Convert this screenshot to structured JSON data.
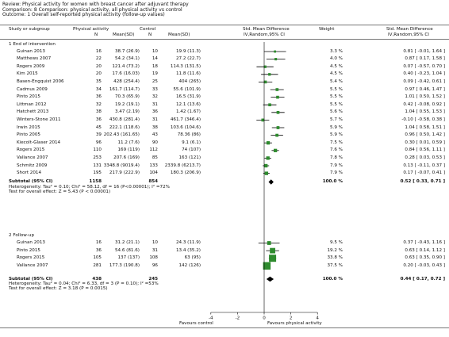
{
  "header": {
    "review": "Review:  Physical activity for women with breast cancer after adjuvant therapy",
    "comparison": "Comparison:  8 Comparison: physical activity, all physical activity vs control",
    "outcome": "Outcome:  1 Overall self-reported physical activity (follow-up values)"
  },
  "columns": {
    "study": "Study or subgroup",
    "pa": "Physical activity",
    "control": "Control",
    "n": "N",
    "meansd": "Mean(SD)",
    "smd": "Std. Mean Difference",
    "smd_method": "IV,Random,95% CI",
    "weight": "Weight",
    "smd2": "Std. Mean Difference",
    "smd2_method": "IV,Random,95% CI"
  },
  "subgroups": [
    {
      "title": "1 End of intervention",
      "studies": [
        {
          "name": "Guinan 2013",
          "n1": "16",
          "ms1": "38.7 (26.9)",
          "n2": "10",
          "ms2": "19.9 (11.3)",
          "weight": "3.3 %",
          "ci_text": "0.81 [ -0.01, 1.64 ]",
          "est": 0.81,
          "lo": -0.01,
          "hi": 1.64
        },
        {
          "name": "Matthews 2007",
          "n1": "22",
          "ms1": "54.2 (34.1)",
          "n2": "14",
          "ms2": "27.2 (22.7)",
          "weight": "4.0 %",
          "ci_text": "0.87 [ 0.17, 1.58 ]",
          "est": 0.87,
          "lo": 0.17,
          "hi": 1.58
        },
        {
          "name": "Rogers 2009",
          "n1": "20",
          "ms1": "121.4 (73.2)",
          "n2": "18",
          "ms2": "114.3 (131.5)",
          "weight": "4.5 %",
          "ci_text": "0.07 [ -0.57, 0.70 ]",
          "est": 0.07,
          "lo": -0.57,
          "hi": 0.7
        },
        {
          "name": "Kim 2015",
          "n1": "20",
          "ms1": "17.6 (16.03)",
          "n2": "19",
          "ms2": "11.8 (11.6)",
          "weight": "4.5 %",
          "ci_text": "0.40 [ -0.23, 1.04 ]",
          "est": 0.4,
          "lo": -0.23,
          "hi": 1.04
        },
        {
          "name": "Basen-Engquist 2006",
          "n1": "35",
          "ms1": "428 (254.4)",
          "n2": "25",
          "ms2": "404 (265)",
          "weight": "5.4 %",
          "ci_text": "0.09 [ -0.42, 0.61 ]",
          "est": 0.09,
          "lo": -0.42,
          "hi": 0.61
        },
        {
          "name": "Cadmus 2009",
          "n1": "34",
          "ms1": "161.7 (114.7)",
          "n2": "33",
          "ms2": "55.6 (101.9)",
          "weight": "5.5 %",
          "ci_text": "0.97 [ 0.46, 1.47 ]",
          "est": 0.97,
          "lo": 0.46,
          "hi": 1.47
        },
        {
          "name": "Pinto 2015",
          "n1": "36",
          "ms1": "70.3 (65.9)",
          "n2": "32",
          "ms2": "16.5 (31.9)",
          "weight": "5.5 %",
          "ci_text": "1.01 [ 0.50, 1.52 ]",
          "est": 1.01,
          "lo": 0.5,
          "hi": 1.52
        },
        {
          "name": "Littman 2012",
          "n1": "32",
          "ms1": "19.2 (19.1)",
          "n2": "31",
          "ms2": "12.1 (13.6)",
          "weight": "5.5 %",
          "ci_text": "0.42 [ -0.08, 0.92 ]",
          "est": 0.42,
          "lo": -0.08,
          "hi": 0.92
        },
        {
          "name": "Hatchett 2013",
          "n1": "38",
          "ms1": "3.47 (2.19)",
          "n2": "36",
          "ms2": "1.42 (1.67)",
          "weight": "5.6 %",
          "ci_text": "1.04 [ 0.55, 1.53 ]",
          "est": 1.04,
          "lo": 0.55,
          "hi": 1.53
        },
        {
          "name": "Winters-Stone 2011",
          "n1": "36",
          "ms1": "430.8 (281.4)",
          "n2": "31",
          "ms2": "461.7 (346.4)",
          "weight": "5.7 %",
          "ci_text": "-0.10 [ -0.58, 0.38 ]",
          "est": -0.1,
          "lo": -0.58,
          "hi": 0.38
        },
        {
          "name": "Irwin 2015",
          "n1": "45",
          "ms1": "222.1 (118.6)",
          "n2": "38",
          "ms2": "103.6 (104.6)",
          "weight": "5.9 %",
          "ci_text": "1.04 [ 0.58, 1.51 ]",
          "est": 1.04,
          "lo": 0.58,
          "hi": 1.51
        },
        {
          "name": "Pinto 2005",
          "n1": "39",
          "ms1": "202.43 (161.65)",
          "n2": "43",
          "ms2": "78.36 (86)",
          "weight": "5.9 %",
          "ci_text": "0.96 [ 0.50, 1.42 ]",
          "est": 0.96,
          "lo": 0.5,
          "hi": 1.42
        },
        {
          "name": "Kiecolt-Glaser 2014",
          "n1": "96",
          "ms1": "11.2 (7.6)",
          "n2": "90",
          "ms2": "9.1 (6.1)",
          "weight": "7.5 %",
          "ci_text": "0.30 [ 0.01, 0.59 ]",
          "est": 0.3,
          "lo": 0.01,
          "hi": 0.59
        },
        {
          "name": "Rogers 2015",
          "n1": "110",
          "ms1": "169 (119)",
          "n2": "112",
          "ms2": "74 (107)",
          "weight": "7.6 %",
          "ci_text": "0.84 [ 0.56, 1.11 ]",
          "est": 0.84,
          "lo": 0.56,
          "hi": 1.11
        },
        {
          "name": "Vallance 2007",
          "n1": "253",
          "ms1": "207.6 (169)",
          "n2": "85",
          "ms2": "163 (121)",
          "weight": "7.8 %",
          "ci_text": "0.28 [ 0.03, 0.53 ]",
          "est": 0.28,
          "lo": 0.03,
          "hi": 0.53
        },
        {
          "name": "Schmitz 2009",
          "n1": "131",
          "ms1": "3348.8 (9019.4)",
          "n2": "133",
          "ms2": "2339.8 (6213.7)",
          "weight": "7.9 %",
          "ci_text": "0.13 [ -0.11, 0.37 ]",
          "est": 0.13,
          "lo": -0.11,
          "hi": 0.37
        },
        {
          "name": "Short 2014",
          "n1": "195",
          "ms1": "217.9 (222.9)",
          "n2": "104",
          "ms2": "180.3 (206.9)",
          "weight": "7.9 %",
          "ci_text": "0.17 [ -0.07, 0.41 ]",
          "est": 0.17,
          "lo": -0.07,
          "hi": 0.41
        }
      ],
      "subtotal": {
        "label": "Subtotal (95% CI)",
        "n1": "1158",
        "n2": "854",
        "weight": "100.0 %",
        "ci_text": "0.52 [ 0.33, 0.71 ]",
        "est": 0.52,
        "lo": 0.33,
        "hi": 0.71
      },
      "heterogeneity": "Heterogeneity: Tau² = 0.10; Chi² = 58.12, df = 16 (P<0.00001); I² =72%",
      "overall": "Test for overall effect: Z = 5.43 (P < 0.00001)"
    },
    {
      "title": "2 Follow-up",
      "studies": [
        {
          "name": "Guinan 2013",
          "n1": "16",
          "ms1": "31.2 (21.1)",
          "n2": "10",
          "ms2": "24.3 (11.9)",
          "weight": "9.5 %",
          "ci_text": "0.37 [ -0.43, 1.16 ]",
          "est": 0.37,
          "lo": -0.43,
          "hi": 1.16
        },
        {
          "name": "Pinto 2015",
          "n1": "36",
          "ms1": "54.6 (81.6)",
          "n2": "31",
          "ms2": "13.4 (35.2)",
          "weight": "19.2 %",
          "ci_text": "0.63 [ 0.14, 1.12 ]",
          "est": 0.63,
          "lo": 0.14,
          "hi": 1.12
        },
        {
          "name": "Rogers 2015",
          "n1": "105",
          "ms1": "137 (137)",
          "n2": "108",
          "ms2": "63 (95)",
          "weight": "33.8 %",
          "ci_text": "0.63 [ 0.35, 0.90 ]",
          "est": 0.63,
          "lo": 0.35,
          "hi": 0.9
        },
        {
          "name": "Vallance 2007",
          "n1": "281",
          "ms1": "177.3 (190.8)",
          "n2": "96",
          "ms2": "142 (126)",
          "weight": "37.5 %",
          "ci_text": "0.20 [ -0.03, 0.43 ]",
          "est": 0.2,
          "lo": -0.03,
          "hi": 0.43
        }
      ],
      "subtotal": {
        "label": "Subtotal (95% CI)",
        "n1": "438",
        "n2": "245",
        "weight": "100.0 %",
        "ci_text": "0.44 [ 0.17, 0.72 ]",
        "est": 0.44,
        "lo": 0.17,
        "hi": 0.72
      },
      "heterogeneity": "Heterogeneity: Tau² = 0.04; Chi² = 6.33, df = 3 (P = 0.10); I² =53%",
      "overall": "Test for overall effect: Z = 3.18 (P = 0.0015)"
    }
  ],
  "axis": {
    "ticks": [
      "-4",
      "-2",
      "0",
      "2",
      "4"
    ],
    "favours_left": "Favours control",
    "favours_right": "Favours physical activity"
  },
  "chart_data": {
    "type": "forest",
    "xlim": [
      -4,
      4
    ],
    "xticks": [
      -4,
      -2,
      0,
      2,
      4
    ],
    "marker_color": "#2e8b2e",
    "diamond_color": "#000000"
  }
}
